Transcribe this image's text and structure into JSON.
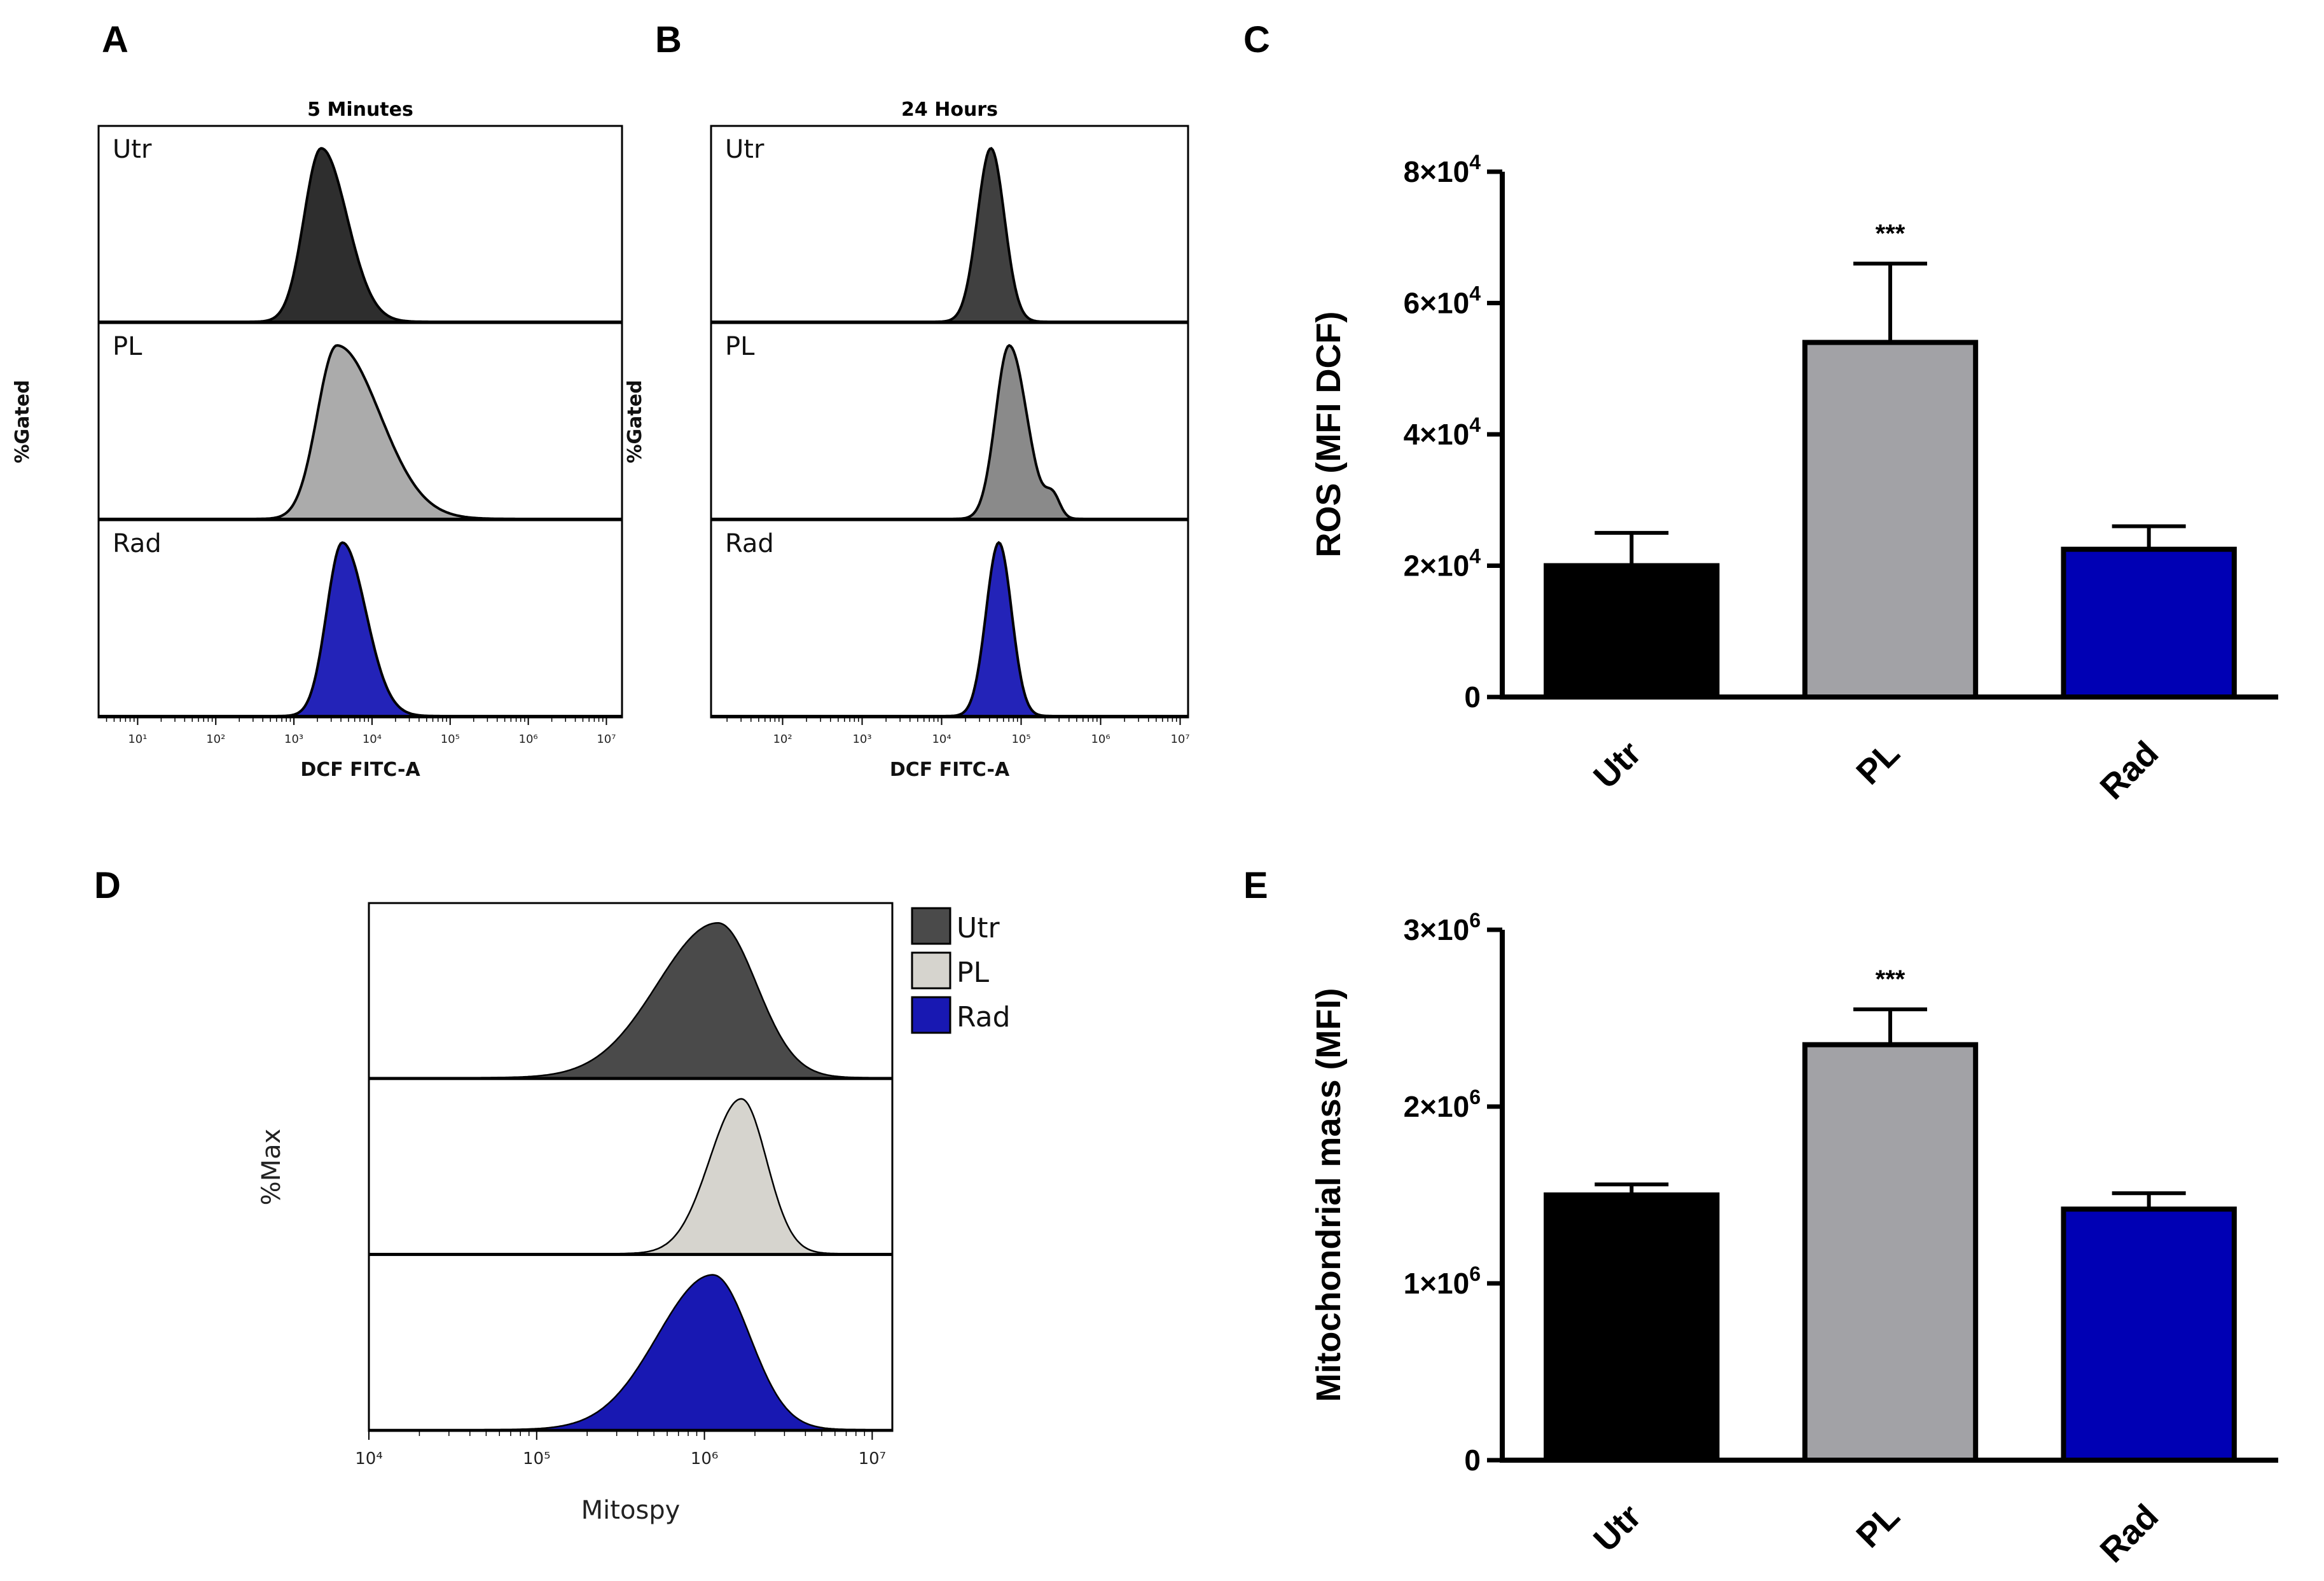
{
  "colors": {
    "utr": "#000000",
    "pl": "#a2a2a6",
    "rad": "#0000b4",
    "hist_utr_A": "#2e2e2e",
    "hist_pl_A": "#ababab",
    "hist_utr_B": "#404040",
    "hist_pl_B": "#8a8a8a",
    "hist_rad": "#2323b8",
    "d_utr": "#4a4a4a",
    "d_pl": "#d6d4ce",
    "d_rad": "#1818b2"
  },
  "chart_data": [
    {
      "type": "histogram",
      "panel": "A",
      "title": "5 Minutes",
      "xlabel": "DCF FITC-A",
      "ylabel": "%Gated",
      "x_ticks": [
        "10¹",
        "10²",
        "10³",
        "10⁴",
        "10⁵",
        "10⁶",
        "10⁷"
      ],
      "x_range_log10": [
        0.5,
        7.2
      ],
      "tracks": [
        {
          "label": "Utr",
          "color_key": "hist_utr_A",
          "peak_log10": 3.35,
          "sigma_left": 0.22,
          "sigma_right": 0.33
        },
        {
          "label": "PL",
          "color_key": "hist_pl_A",
          "peak_log10": 3.55,
          "sigma_left": 0.25,
          "sigma_right": 0.55
        },
        {
          "label": "Rad",
          "color_key": "hist_rad",
          "peak_log10": 3.62,
          "sigma_left": 0.2,
          "sigma_right": 0.3
        }
      ]
    },
    {
      "type": "histogram",
      "panel": "B",
      "title": "24 Hours",
      "xlabel": "DCF FITC-A",
      "ylabel": "%Gated",
      "x_ticks": [
        "10²",
        "10³",
        "10⁴",
        "10⁵",
        "10⁶",
        "10⁷"
      ],
      "x_range_log10": [
        1.1,
        7.1
      ],
      "tracks": [
        {
          "label": "Utr",
          "color_key": "hist_utr_B",
          "peak_log10": 4.62,
          "sigma_left": 0.17,
          "sigma_right": 0.17
        },
        {
          "label": "PL",
          "color_key": "hist_pl_B",
          "peak_log10": 4.85,
          "sigma_left": 0.17,
          "sigma_right": 0.22
        },
        {
          "label": "Rad",
          "color_key": "hist_rad",
          "peak_log10": 4.72,
          "sigma_left": 0.16,
          "sigma_right": 0.16
        }
      ]
    },
    {
      "type": "bar",
      "panel": "C",
      "ylabel": "ROS (MFI DCF)",
      "categories": [
        "Utr",
        "PL",
        "Rad"
      ],
      "values": [
        20000,
        54000,
        22500
      ],
      "errors": [
        5000,
        12000,
        3500
      ],
      "ylim": [
        0,
        80000
      ],
      "y_ticks": [
        0,
        20000,
        40000,
        60000,
        80000
      ],
      "y_tick_base": [
        "0",
        "2×10",
        "4×10",
        "6×10",
        "8×10"
      ],
      "y_tick_exp": [
        "",
        "4",
        "4",
        "4",
        "4"
      ],
      "significance": [
        "",
        "***",
        ""
      ]
    },
    {
      "type": "histogram",
      "panel": "D",
      "xlabel": "Mitospy",
      "ylabel": "%Max",
      "x_ticks": [
        "10⁴",
        "10⁵",
        "10⁶",
        "10⁷"
      ],
      "x_range_log10": [
        4,
        7.12
      ],
      "legend": [
        "Utr",
        "PL",
        "Rad"
      ],
      "legend_position": "top-right",
      "tracks": [
        {
          "label": "Utr",
          "color_key": "d_utr",
          "peak_log10": 6.08,
          "sigma_left": 0.36,
          "sigma_right": 0.23
        },
        {
          "label": "PL",
          "color_key": "d_pl",
          "peak_log10": 6.22,
          "sigma_left": 0.19,
          "sigma_right": 0.15
        },
        {
          "label": "Rad",
          "color_key": "d_rad",
          "peak_log10": 6.05,
          "sigma_left": 0.33,
          "sigma_right": 0.22
        }
      ]
    },
    {
      "type": "bar",
      "panel": "E",
      "ylabel": "Mitochondrial mass (MFI)",
      "categories": [
        "Utr",
        "PL",
        "Rad"
      ],
      "values": [
        1500000,
        2350000,
        1420000
      ],
      "errors": [
        60000,
        200000,
        90000
      ],
      "ylim": [
        0,
        3000000
      ],
      "y_ticks": [
        0,
        1000000,
        2000000,
        3000000
      ],
      "y_tick_base": [
        "0",
        "1×10",
        "2×10",
        "3×10"
      ],
      "y_tick_exp": [
        "",
        "6",
        "6",
        "6"
      ],
      "significance": [
        "",
        "***",
        ""
      ]
    }
  ],
  "panel_letters": [
    "A",
    "B",
    "C",
    "D",
    "E"
  ]
}
